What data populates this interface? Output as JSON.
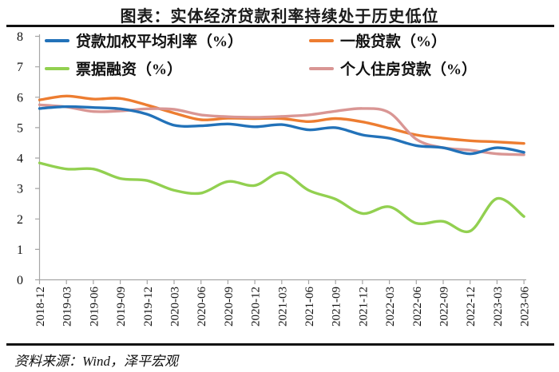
{
  "title": "图表：实体经济贷款利率持续处于历史低位",
  "source": "资料来源：Wind，泽平宏观",
  "chart_data": {
    "type": "line",
    "title": "图表：实体经济贷款利率持续处于历史低位",
    "xlabel": "",
    "ylabel": "",
    "ylim": [
      0,
      8
    ],
    "ytick_step": 1,
    "grid": false,
    "legend_position": "top-inside",
    "axis_color": "#a6a6a6",
    "text_color": "#111111",
    "smooth_lines": true,
    "categories": [
      "2018-12",
      "2019-03",
      "2019-06",
      "2019-09",
      "2019-12",
      "2020-03",
      "2020-06",
      "2020-09",
      "2020-12",
      "2021-03",
      "2021-06",
      "2021-09",
      "2021-12",
      "2022-03",
      "2022-06",
      "2022-09",
      "2022-12",
      "2023-03",
      "2023-06"
    ],
    "series": [
      {
        "key": "weighted-avg-loan-rate",
        "name": "贷款加权平均利率（%）",
        "color": "#2272b9",
        "values": [
          5.63,
          5.69,
          5.66,
          5.62,
          5.44,
          5.08,
          5.06,
          5.12,
          5.03,
          5.1,
          4.93,
          5.0,
          4.76,
          4.65,
          4.41,
          4.34,
          4.14,
          4.34,
          4.19
        ]
      },
      {
        "key": "general-loan-rate",
        "name": "一般贷款（%）",
        "color": "#ed7d31",
        "values": [
          5.91,
          6.04,
          5.94,
          5.96,
          5.74,
          5.48,
          5.26,
          5.31,
          5.3,
          5.3,
          5.2,
          5.3,
          5.19,
          4.98,
          4.76,
          4.65,
          4.57,
          4.53,
          4.48
        ]
      },
      {
        "key": "bill-financing-rate",
        "name": "票据融资（%）",
        "color": "#92d050",
        "values": [
          3.84,
          3.64,
          3.64,
          3.33,
          3.26,
          2.94,
          2.85,
          3.23,
          3.1,
          3.52,
          2.94,
          2.65,
          2.18,
          2.4,
          1.86,
          1.92,
          1.6,
          2.67,
          2.08
        ]
      },
      {
        "key": "personal-housing-loan-rate",
        "name": "个人住房贷款（%）",
        "color": "#d99694",
        "values": [
          5.75,
          5.68,
          5.53,
          5.55,
          5.62,
          5.6,
          5.42,
          5.36,
          5.34,
          5.37,
          5.42,
          5.54,
          5.63,
          5.49,
          4.62,
          4.34,
          4.26,
          4.14,
          4.11
        ]
      }
    ]
  }
}
